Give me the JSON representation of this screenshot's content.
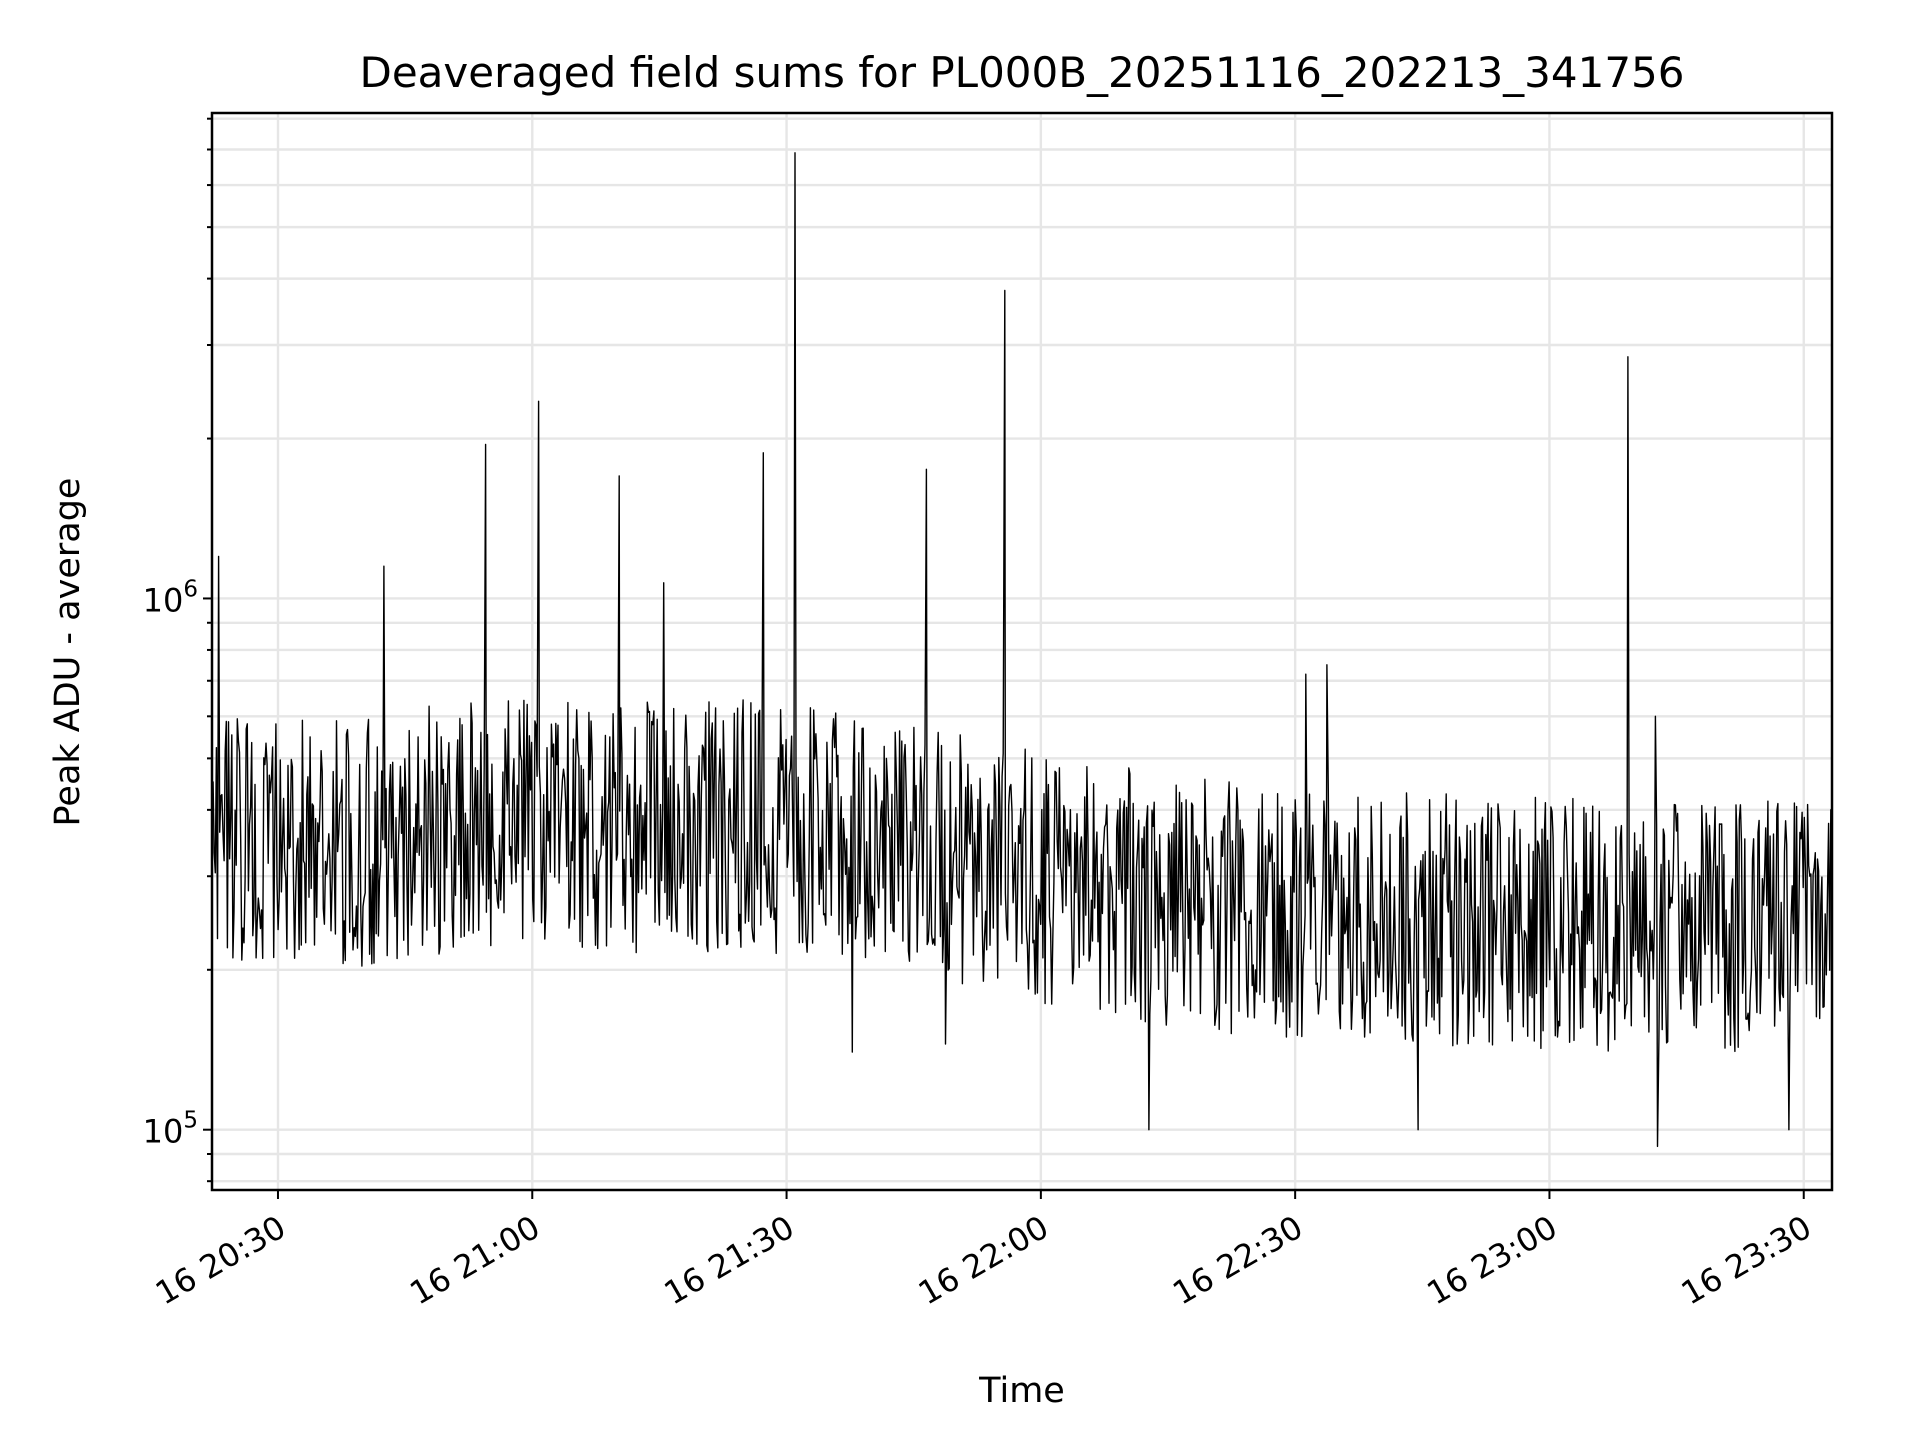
{
  "chart_data": {
    "type": "line",
    "title": "Deaveraged field sums for PL000B_20251116_202213_341756",
    "xlabel": "Time",
    "ylabel": "Peak ADU - average",
    "yscale": "log",
    "ylim": [
      77000,
      8200000
    ],
    "xlim": [
      "2025-11-16 20:22:13",
      "2025-11-16 23:33:20"
    ],
    "grid": true,
    "x_ticks": [
      "2025-11-16 20:30",
      "2025-11-16 21:00",
      "2025-11-16 21:30",
      "2025-11-16 22:00",
      "2025-11-16 22:30",
      "2025-11-16 23:00",
      "2025-11-16 23:30"
    ],
    "x_tick_labels": [
      "16 20:30",
      "16 21:00",
      "16 21:30",
      "16 22:00",
      "16 22:30",
      "16 23:00",
      "16 23:30"
    ],
    "y_major_ticks": [
      100000,
      1000000
    ],
    "y_major_labels": [
      {
        "base": "10",
        "exp": "5"
      },
      {
        "base": "10",
        "exp": "6"
      }
    ],
    "series": [
      {
        "line_color": "#000000",
        "t_start": "2025-11-16 20:22:13",
        "t_end": "2025-11-16 23:33:20",
        "baseline_values": [
          [
            0,
            360000
          ],
          [
            5,
            380000
          ],
          [
            15,
            360000
          ],
          [
            25,
            380000
          ],
          [
            35,
            400000
          ],
          [
            45,
            390000
          ],
          [
            55,
            385000
          ],
          [
            60,
            395000
          ],
          [
            65,
            390000
          ],
          [
            75,
            370000
          ],
          [
            85,
            350000
          ],
          [
            95,
            320000
          ],
          [
            105,
            300000
          ],
          [
            115,
            280000
          ],
          [
            125,
            270000
          ],
          [
            135,
            265000
          ],
          [
            145,
            260000
          ],
          [
            160,
            255000
          ],
          [
            175,
            250000
          ],
          [
            191,
            255000
          ]
        ],
        "baseline_scatter_factor": [
          0.55,
          1.65
        ],
        "baseline_sample_minutes": 0.13,
        "baseline_seed": 20251116,
        "spikes": [
          {
            "t": "2025-11-16 20:23:00",
            "y": 1200000
          },
          {
            "t": "2025-11-16 20:42:30",
            "y": 1150000
          },
          {
            "t": "2025-11-16 20:54:30",
            "y": 1950000
          },
          {
            "t": "2025-11-16 21:00:45",
            "y": 2350000
          },
          {
            "t": "2025-11-16 21:10:15",
            "y": 1700000
          },
          {
            "t": "2025-11-16 21:15:30",
            "y": 1070000
          },
          {
            "t": "2025-11-16 21:27:15",
            "y": 1880000
          },
          {
            "t": "2025-11-16 21:31:00",
            "y": 6900000
          },
          {
            "t": "2025-11-16 21:46:30",
            "y": 1750000
          },
          {
            "t": "2025-11-16 21:55:45",
            "y": 3800000
          },
          {
            "t": "2025-11-16 22:31:15",
            "y": 720000
          },
          {
            "t": "2025-11-16 22:33:45",
            "y": 750000
          },
          {
            "t": "2025-11-16 23:09:15",
            "y": 2850000
          },
          {
            "t": "2025-11-16 23:12:30",
            "y": 600000
          }
        ],
        "dips": [
          {
            "t": "2025-11-16 21:37:45",
            "y": 140000
          },
          {
            "t": "2025-11-16 21:48:45",
            "y": 145000
          },
          {
            "t": "2025-11-16 22:12:45",
            "y": 100000
          },
          {
            "t": "2025-11-16 22:44:30",
            "y": 100000
          },
          {
            "t": "2025-11-16 23:12:45",
            "y": 93000
          },
          {
            "t": "2025-11-16 23:28:15",
            "y": 100000
          }
        ]
      }
    ]
  }
}
